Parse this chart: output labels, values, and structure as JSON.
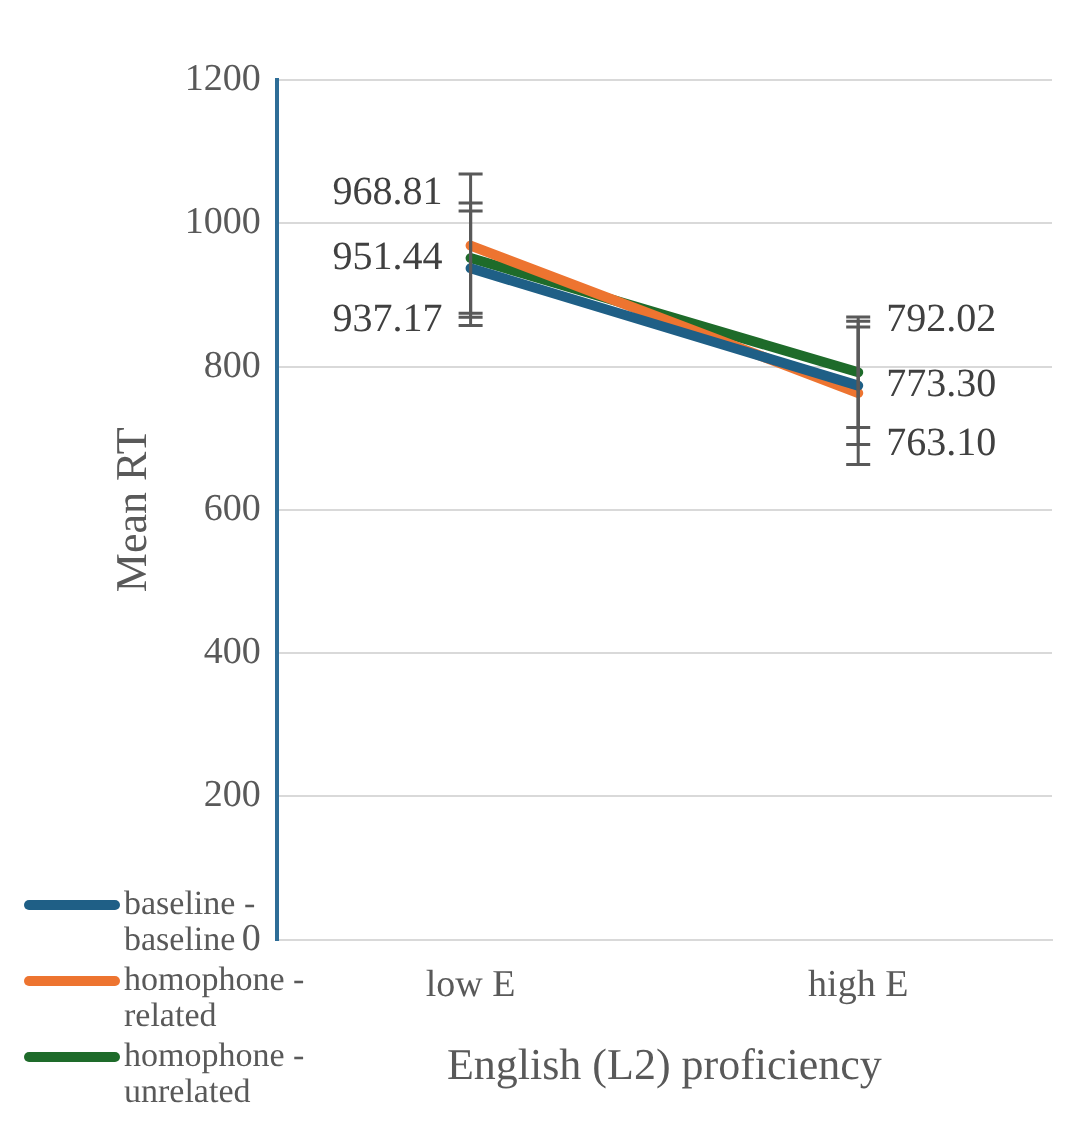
{
  "chart_data": {
    "type": "line",
    "xlabel": "English (L2) proficiency",
    "ylabel": "Mean RT",
    "categories": [
      "low E",
      "high E"
    ],
    "series": [
      {
        "name": "baseline - baseline",
        "color": "#1f5f86",
        "values": [
          937.17,
          773.3
        ],
        "value_labels": [
          "937.17",
          "773.30"
        ],
        "errors": [
          80,
          82
        ]
      },
      {
        "name": "homophone - related",
        "color": "#ed7430",
        "values": [
          968.81,
          763.1
        ],
        "value_labels": [
          "968.81",
          "763.10"
        ],
        "errors": [
          100,
          100
        ]
      },
      {
        "name": "homophone - unrelated",
        "color": "#1e6b2a",
        "values": [
          951.44,
          792.02
        ],
        "value_labels": [
          "951.44",
          "792.02"
        ],
        "errors": [
          77,
          77
        ]
      }
    ],
    "ylim": [
      0,
      1200
    ],
    "yticks": [
      0,
      200,
      400,
      600,
      800,
      1000,
      1200
    ],
    "grid": "y",
    "legend": "bottom left",
    "marker": "none"
  }
}
